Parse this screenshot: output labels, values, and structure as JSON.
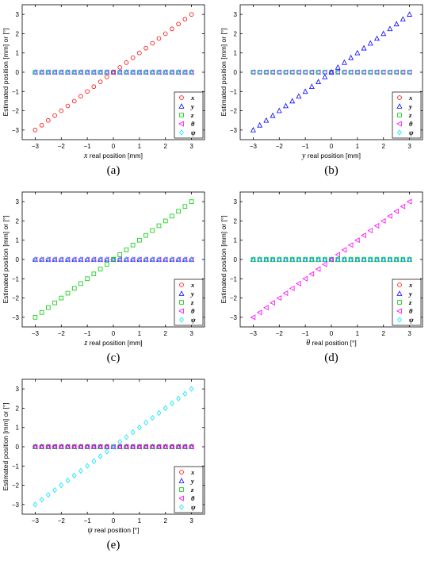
{
  "chart_data": [
    {
      "type": "scatter",
      "caption": "(a)",
      "xlabel": {
        "symbol": "x",
        "text": " real position [mm]"
      },
      "ylabel": "Estimated position [mm] or [°]",
      "xlim": [
        -3.5,
        3.5
      ],
      "ylim": [
        -3.5,
        3.5
      ],
      "xticks": [
        -3,
        -2,
        -1,
        0,
        1,
        2,
        3
      ],
      "yticks": [
        -3,
        -2,
        -1,
        0,
        1,
        2,
        3
      ],
      "x": [
        -3,
        -2.75,
        -2.5,
        -2.25,
        -2,
        -1.75,
        -1.5,
        -1.25,
        -1,
        -0.75,
        -0.5,
        -0.25,
        0,
        0.25,
        0.5,
        0.75,
        1,
        1.25,
        1.5,
        1.75,
        2,
        2.25,
        2.5,
        2.75,
        3
      ],
      "moving_series": "x",
      "grid": false,
      "legend": "bottom-right",
      "series": [
        {
          "name": "x",
          "marker": "circle",
          "color": "#ff0000"
        },
        {
          "name": "y",
          "marker": "triangle-up",
          "color": "#0000ff"
        },
        {
          "name": "z",
          "marker": "square",
          "color": "#00cc00"
        },
        {
          "name": "θ",
          "marker": "triangle-left",
          "color": "#ff00ff"
        },
        {
          "name": "ψ",
          "marker": "diamond",
          "color": "#00e5ff"
        }
      ]
    },
    {
      "type": "scatter",
      "caption": "(b)",
      "xlabel": {
        "symbol": "y",
        "text": " real position [mm]"
      },
      "ylabel": "Estimated position [mm] or [°]",
      "xlim": [
        -3.5,
        3.5
      ],
      "ylim": [
        -3.5,
        3.5
      ],
      "xticks": [
        -3,
        -2,
        -1,
        0,
        1,
        2,
        3
      ],
      "yticks": [
        -3,
        -2,
        -1,
        0,
        1,
        2,
        3
      ],
      "x": [
        -3,
        -2.75,
        -2.5,
        -2.25,
        -2,
        -1.75,
        -1.5,
        -1.25,
        -1,
        -0.75,
        -0.5,
        -0.25,
        0,
        0.25,
        0.5,
        0.75,
        1,
        1.25,
        1.5,
        1.75,
        2,
        2.25,
        2.5,
        2.75,
        3
      ],
      "moving_series": "y",
      "grid": false,
      "legend": "bottom-right",
      "series": [
        {
          "name": "x",
          "marker": "circle",
          "color": "#ff0000"
        },
        {
          "name": "y",
          "marker": "triangle-up",
          "color": "#0000ff"
        },
        {
          "name": "z",
          "marker": "square",
          "color": "#00cc00"
        },
        {
          "name": "θ",
          "marker": "triangle-left",
          "color": "#ff00ff"
        },
        {
          "name": "ψ",
          "marker": "diamond",
          "color": "#00e5ff"
        }
      ]
    },
    {
      "type": "scatter",
      "caption": "(c)",
      "xlabel": {
        "symbol": "z",
        "text": " real position [mm]"
      },
      "ylabel": "Estimated position [mm] or [°]",
      "xlim": [
        -3.5,
        3.5
      ],
      "ylim": [
        -3.5,
        3.5
      ],
      "xticks": [
        -3,
        -2,
        -1,
        0,
        1,
        2,
        3
      ],
      "yticks": [
        -3,
        -2,
        -1,
        0,
        1,
        2,
        3
      ],
      "x": [
        -3,
        -2.75,
        -2.5,
        -2.25,
        -2,
        -1.75,
        -1.5,
        -1.25,
        -1,
        -0.75,
        -0.5,
        -0.25,
        0,
        0.25,
        0.5,
        0.75,
        1,
        1.25,
        1.5,
        1.75,
        2,
        2.25,
        2.5,
        2.75,
        3
      ],
      "moving_series": "z",
      "grid": false,
      "legend": "bottom-right",
      "series": [
        {
          "name": "x",
          "marker": "circle",
          "color": "#ff0000"
        },
        {
          "name": "y",
          "marker": "triangle-up",
          "color": "#0000ff"
        },
        {
          "name": "z",
          "marker": "square",
          "color": "#00cc00"
        },
        {
          "name": "θ",
          "marker": "triangle-left",
          "color": "#ff00ff"
        },
        {
          "name": "ψ",
          "marker": "diamond",
          "color": "#00e5ff"
        }
      ]
    },
    {
      "type": "scatter",
      "caption": "(d)",
      "xlabel": {
        "symbol": "θ",
        "text": " real position [°]"
      },
      "ylabel": "Estimated position [mm] or [°]",
      "xlim": [
        -3.5,
        3.5
      ],
      "ylim": [
        -3.5,
        3.5
      ],
      "xticks": [
        -3,
        -2,
        -1,
        0,
        1,
        2,
        3
      ],
      "yticks": [
        -3,
        -2,
        -1,
        0,
        1,
        2,
        3
      ],
      "x": [
        -3,
        -2.75,
        -2.5,
        -2.25,
        -2,
        -1.75,
        -1.5,
        -1.25,
        -1,
        -0.75,
        -0.5,
        -0.25,
        0,
        0.25,
        0.5,
        0.75,
        1,
        1.25,
        1.5,
        1.75,
        2,
        2.25,
        2.5,
        2.75,
        3
      ],
      "moving_series": "θ",
      "grid": false,
      "legend": "bottom-right",
      "series": [
        {
          "name": "x",
          "marker": "circle",
          "color": "#ff0000"
        },
        {
          "name": "y",
          "marker": "triangle-up",
          "color": "#0000ff"
        },
        {
          "name": "z",
          "marker": "square",
          "color": "#00cc00"
        },
        {
          "name": "θ",
          "marker": "triangle-left",
          "color": "#ff00ff"
        },
        {
          "name": "ψ",
          "marker": "diamond",
          "color": "#00e5ff"
        }
      ]
    },
    {
      "type": "scatter",
      "caption": "(e)",
      "xlabel": {
        "symbol": "ψ",
        "text": " real position [°]"
      },
      "ylabel": "Estimated position [mm] or [°]",
      "xlim": [
        -3.5,
        3.5
      ],
      "ylim": [
        -3.5,
        3.5
      ],
      "xticks": [
        -3,
        -2,
        -1,
        0,
        1,
        2,
        3
      ],
      "yticks": [
        -3,
        -2,
        -1,
        0,
        1,
        2,
        3
      ],
      "x": [
        -3,
        -2.75,
        -2.5,
        -2.25,
        -2,
        -1.75,
        -1.5,
        -1.25,
        -1,
        -0.75,
        -0.5,
        -0.25,
        0,
        0.25,
        0.5,
        0.75,
        1,
        1.25,
        1.5,
        1.75,
        2,
        2.25,
        2.5,
        2.75,
        3
      ],
      "moving_series": "ψ",
      "grid": false,
      "legend": "bottom-right",
      "series": [
        {
          "name": "x",
          "marker": "circle",
          "color": "#ff0000"
        },
        {
          "name": "y",
          "marker": "triangle-up",
          "color": "#0000ff"
        },
        {
          "name": "z",
          "marker": "square",
          "color": "#00cc00"
        },
        {
          "name": "θ",
          "marker": "triangle-left",
          "color": "#ff00ff"
        },
        {
          "name": "ψ",
          "marker": "diamond",
          "color": "#00e5ff"
        }
      ]
    }
  ]
}
